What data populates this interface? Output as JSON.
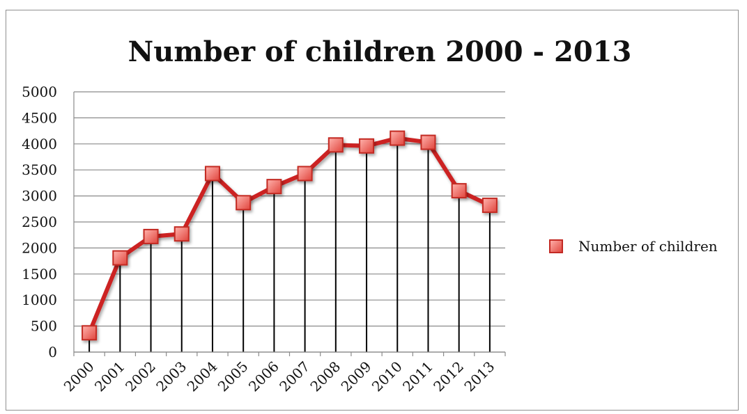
{
  "chart_data": {
    "type": "line",
    "title": "Number of children 2000 - 2013",
    "xlabel": "",
    "ylabel": "",
    "categories": [
      "2000",
      "2001",
      "2002",
      "2003",
      "2004",
      "2005",
      "2006",
      "2007",
      "2008",
      "2009",
      "2010",
      "2011",
      "2012",
      "2013"
    ],
    "series": [
      {
        "name": "Number of children",
        "values": [
          370,
          1810,
          2220,
          2270,
          3430,
          2870,
          3180,
          3430,
          3980,
          3960,
          4110,
          4030,
          3100,
          2820
        ],
        "color": "#cc2222"
      }
    ],
    "ylim": [
      0,
      5000
    ],
    "yticks": [
      "0",
      "500",
      "1000",
      "1500",
      "2000",
      "2500",
      "3000",
      "3500",
      "4000",
      "4500",
      "5000"
    ],
    "grid": true,
    "drop_lines": true,
    "legend_position": "right"
  }
}
